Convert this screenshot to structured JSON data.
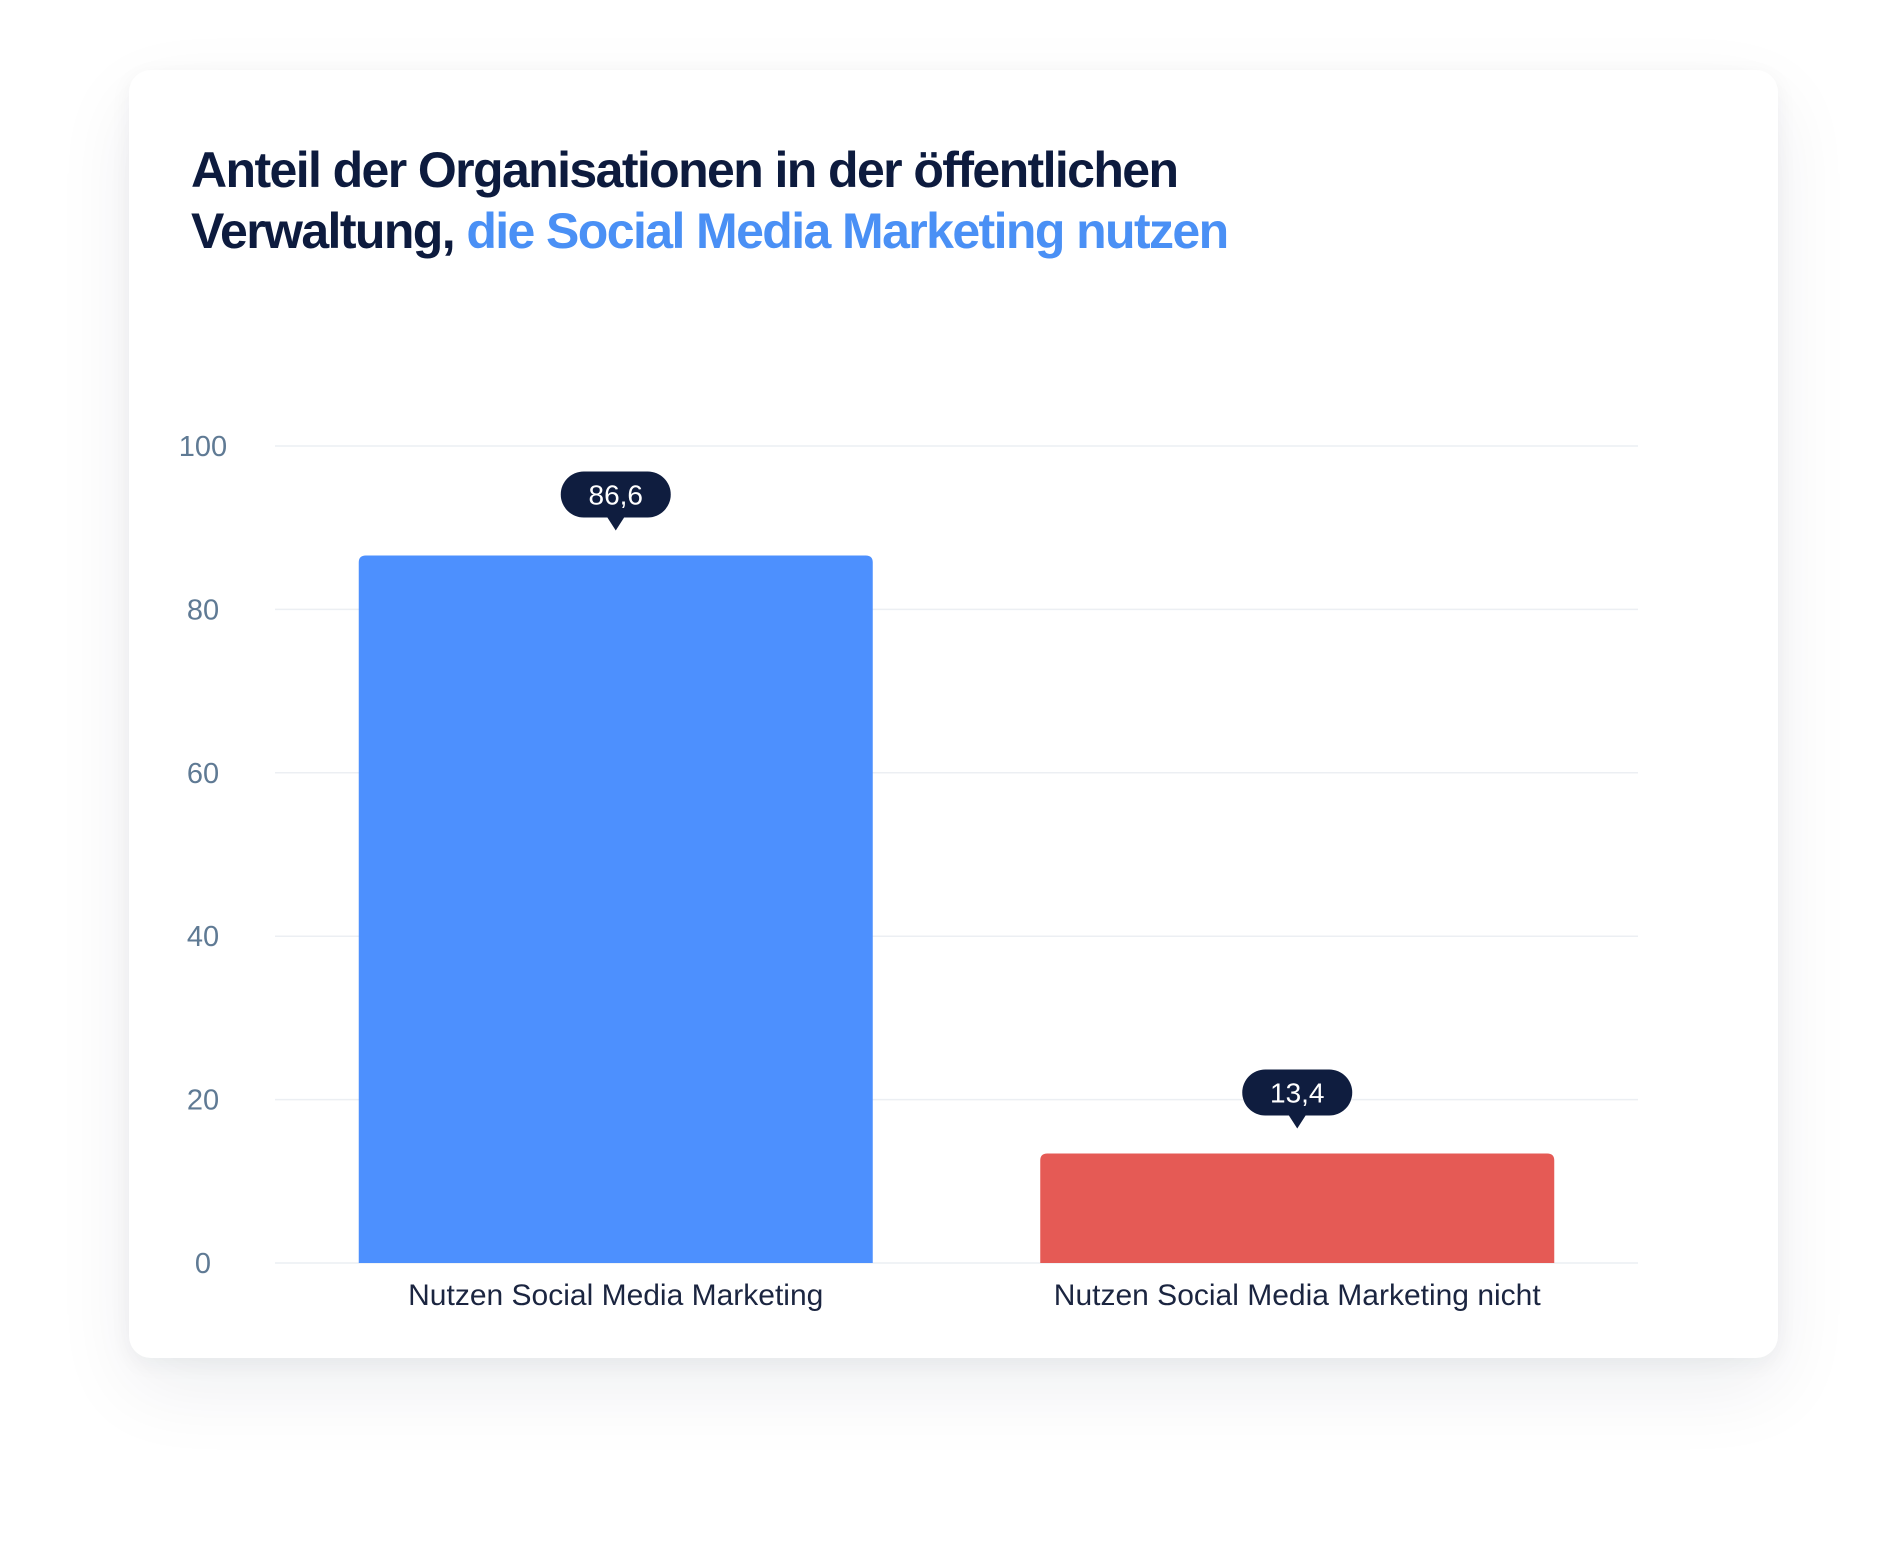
{
  "title": {
    "part1": "Anteil der Organisationen in der öffentlichen Verwaltung, ",
    "part2": "die Social Media Marketing nutzen"
  },
  "colors": {
    "title": "#0d1b3e",
    "title_highlight": "#4a90f5",
    "tick": "#5f7a94",
    "grid": "#eceff3",
    "bubble": "#0f1d3f",
    "category": "#1b2540"
  },
  "chart_data": {
    "type": "bar",
    "categories": [
      "Nutzen Social Media Marketing",
      "Nutzen Social Media Marketing nicht"
    ],
    "values": [
      86.6,
      13.4
    ],
    "data_labels": [
      "86,6",
      "13,4"
    ],
    "bar_colors": [
      "#4d90fe",
      "#e55a55"
    ],
    "yticks": [
      0,
      20,
      40,
      60,
      80,
      100
    ],
    "ylim": [
      0,
      100
    ],
    "grid": true,
    "legend": "none",
    "xlabel": "",
    "ylabel": ""
  }
}
